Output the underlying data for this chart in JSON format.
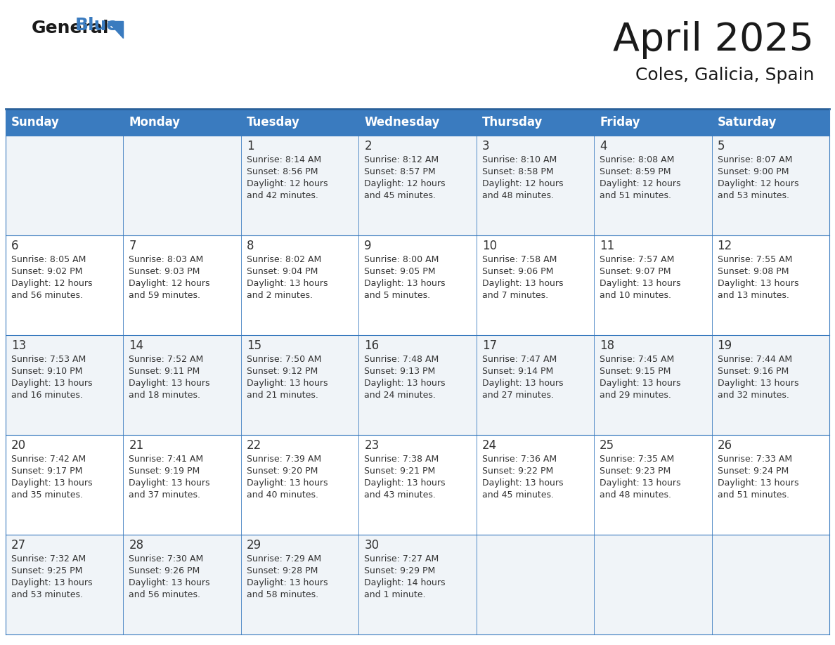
{
  "title": "April 2025",
  "subtitle": "Coles, Galicia, Spain",
  "header_bg": "#3a7bbf",
  "header_text_color": "#ffffff",
  "cell_bg_odd": "#f0f4f8",
  "cell_bg_even": "#ffffff",
  "border_color": "#3a7bbf",
  "text_color": "#333333",
  "days_of_week": [
    "Sunday",
    "Monday",
    "Tuesday",
    "Wednesday",
    "Thursday",
    "Friday",
    "Saturday"
  ],
  "weeks": [
    [
      {
        "day": "",
        "lines": []
      },
      {
        "day": "",
        "lines": []
      },
      {
        "day": "1",
        "lines": [
          "Sunrise: 8:14 AM",
          "Sunset: 8:56 PM",
          "Daylight: 12 hours",
          "and 42 minutes."
        ]
      },
      {
        "day": "2",
        "lines": [
          "Sunrise: 8:12 AM",
          "Sunset: 8:57 PM",
          "Daylight: 12 hours",
          "and 45 minutes."
        ]
      },
      {
        "day": "3",
        "lines": [
          "Sunrise: 8:10 AM",
          "Sunset: 8:58 PM",
          "Daylight: 12 hours",
          "and 48 minutes."
        ]
      },
      {
        "day": "4",
        "lines": [
          "Sunrise: 8:08 AM",
          "Sunset: 8:59 PM",
          "Daylight: 12 hours",
          "and 51 minutes."
        ]
      },
      {
        "day": "5",
        "lines": [
          "Sunrise: 8:07 AM",
          "Sunset: 9:00 PM",
          "Daylight: 12 hours",
          "and 53 minutes."
        ]
      }
    ],
    [
      {
        "day": "6",
        "lines": [
          "Sunrise: 8:05 AM",
          "Sunset: 9:02 PM",
          "Daylight: 12 hours",
          "and 56 minutes."
        ]
      },
      {
        "day": "7",
        "lines": [
          "Sunrise: 8:03 AM",
          "Sunset: 9:03 PM",
          "Daylight: 12 hours",
          "and 59 minutes."
        ]
      },
      {
        "day": "8",
        "lines": [
          "Sunrise: 8:02 AM",
          "Sunset: 9:04 PM",
          "Daylight: 13 hours",
          "and 2 minutes."
        ]
      },
      {
        "day": "9",
        "lines": [
          "Sunrise: 8:00 AM",
          "Sunset: 9:05 PM",
          "Daylight: 13 hours",
          "and 5 minutes."
        ]
      },
      {
        "day": "10",
        "lines": [
          "Sunrise: 7:58 AM",
          "Sunset: 9:06 PM",
          "Daylight: 13 hours",
          "and 7 minutes."
        ]
      },
      {
        "day": "11",
        "lines": [
          "Sunrise: 7:57 AM",
          "Sunset: 9:07 PM",
          "Daylight: 13 hours",
          "and 10 minutes."
        ]
      },
      {
        "day": "12",
        "lines": [
          "Sunrise: 7:55 AM",
          "Sunset: 9:08 PM",
          "Daylight: 13 hours",
          "and 13 minutes."
        ]
      }
    ],
    [
      {
        "day": "13",
        "lines": [
          "Sunrise: 7:53 AM",
          "Sunset: 9:10 PM",
          "Daylight: 13 hours",
          "and 16 minutes."
        ]
      },
      {
        "day": "14",
        "lines": [
          "Sunrise: 7:52 AM",
          "Sunset: 9:11 PM",
          "Daylight: 13 hours",
          "and 18 minutes."
        ]
      },
      {
        "day": "15",
        "lines": [
          "Sunrise: 7:50 AM",
          "Sunset: 9:12 PM",
          "Daylight: 13 hours",
          "and 21 minutes."
        ]
      },
      {
        "day": "16",
        "lines": [
          "Sunrise: 7:48 AM",
          "Sunset: 9:13 PM",
          "Daylight: 13 hours",
          "and 24 minutes."
        ]
      },
      {
        "day": "17",
        "lines": [
          "Sunrise: 7:47 AM",
          "Sunset: 9:14 PM",
          "Daylight: 13 hours",
          "and 27 minutes."
        ]
      },
      {
        "day": "18",
        "lines": [
          "Sunrise: 7:45 AM",
          "Sunset: 9:15 PM",
          "Daylight: 13 hours",
          "and 29 minutes."
        ]
      },
      {
        "day": "19",
        "lines": [
          "Sunrise: 7:44 AM",
          "Sunset: 9:16 PM",
          "Daylight: 13 hours",
          "and 32 minutes."
        ]
      }
    ],
    [
      {
        "day": "20",
        "lines": [
          "Sunrise: 7:42 AM",
          "Sunset: 9:17 PM",
          "Daylight: 13 hours",
          "and 35 minutes."
        ]
      },
      {
        "day": "21",
        "lines": [
          "Sunrise: 7:41 AM",
          "Sunset: 9:19 PM",
          "Daylight: 13 hours",
          "and 37 minutes."
        ]
      },
      {
        "day": "22",
        "lines": [
          "Sunrise: 7:39 AM",
          "Sunset: 9:20 PM",
          "Daylight: 13 hours",
          "and 40 minutes."
        ]
      },
      {
        "day": "23",
        "lines": [
          "Sunrise: 7:38 AM",
          "Sunset: 9:21 PM",
          "Daylight: 13 hours",
          "and 43 minutes."
        ]
      },
      {
        "day": "24",
        "lines": [
          "Sunrise: 7:36 AM",
          "Sunset: 9:22 PM",
          "Daylight: 13 hours",
          "and 45 minutes."
        ]
      },
      {
        "day": "25",
        "lines": [
          "Sunrise: 7:35 AM",
          "Sunset: 9:23 PM",
          "Daylight: 13 hours",
          "and 48 minutes."
        ]
      },
      {
        "day": "26",
        "lines": [
          "Sunrise: 7:33 AM",
          "Sunset: 9:24 PM",
          "Daylight: 13 hours",
          "and 51 minutes."
        ]
      }
    ],
    [
      {
        "day": "27",
        "lines": [
          "Sunrise: 7:32 AM",
          "Sunset: 9:25 PM",
          "Daylight: 13 hours",
          "and 53 minutes."
        ]
      },
      {
        "day": "28",
        "lines": [
          "Sunrise: 7:30 AM",
          "Sunset: 9:26 PM",
          "Daylight: 13 hours",
          "and 56 minutes."
        ]
      },
      {
        "day": "29",
        "lines": [
          "Sunrise: 7:29 AM",
          "Sunset: 9:28 PM",
          "Daylight: 13 hours",
          "and 58 minutes."
        ]
      },
      {
        "day": "30",
        "lines": [
          "Sunrise: 7:27 AM",
          "Sunset: 9:29 PM",
          "Daylight: 14 hours",
          "and 1 minute."
        ]
      },
      {
        "day": "",
        "lines": []
      },
      {
        "day": "",
        "lines": []
      },
      {
        "day": "",
        "lines": []
      }
    ]
  ],
  "fig_width": 11.88,
  "fig_height": 9.18,
  "dpi": 100
}
